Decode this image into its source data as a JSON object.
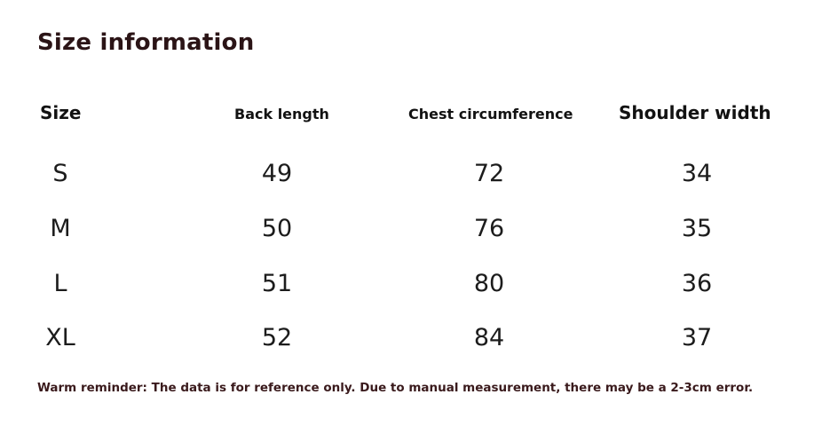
{
  "title": "Size information",
  "headers": {
    "size": "Size",
    "back_length": "Back length",
    "chest": "Chest circumference",
    "shoulder": "Shoulder width"
  },
  "rows": [
    {
      "size": "S",
      "back_length": "49",
      "chest": "72",
      "shoulder": "34"
    },
    {
      "size": "M",
      "back_length": "50",
      "chest": "76",
      "shoulder": "35"
    },
    {
      "size": "L",
      "back_length": "51",
      "chest": "80",
      "shoulder": "36"
    },
    {
      "size": "XL",
      "back_length": "52",
      "chest": "84",
      "shoulder": "37"
    }
  ],
  "reminder": "Warm reminder: The data is for reference only. Due to manual measurement, there may be a 2-3cm error.",
  "colors": {
    "title": "#2b1416",
    "text": "#1c1c1c",
    "reminder": "#3a1a1c",
    "background": "#ffffff"
  }
}
